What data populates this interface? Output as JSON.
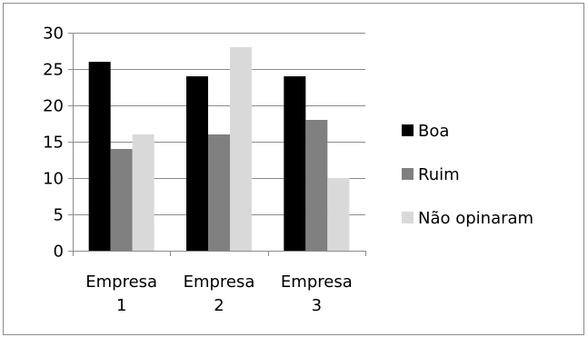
{
  "chart_data": {
    "type": "bar",
    "title": "",
    "xlabel": "",
    "ylabel": "",
    "categories": [
      [
        "Empresa",
        "1"
      ],
      [
        "Empresa",
        "2"
      ],
      [
        "Empresa",
        "3"
      ]
    ],
    "series": [
      {
        "name": "Boa",
        "values": [
          26,
          24,
          24
        ],
        "color": "#000000"
      },
      {
        "name": "Ruim",
        "values": [
          14,
          16,
          18
        ],
        "color": "#808080"
      },
      {
        "name": "Não opinaram",
        "values": [
          16,
          28,
          10
        ],
        "color": "#d9d9d9"
      }
    ],
    "ylim": [
      0,
      30
    ],
    "yticks": [
      0,
      5,
      10,
      15,
      20,
      25,
      30
    ],
    "grid": true,
    "legend_position": "right"
  }
}
